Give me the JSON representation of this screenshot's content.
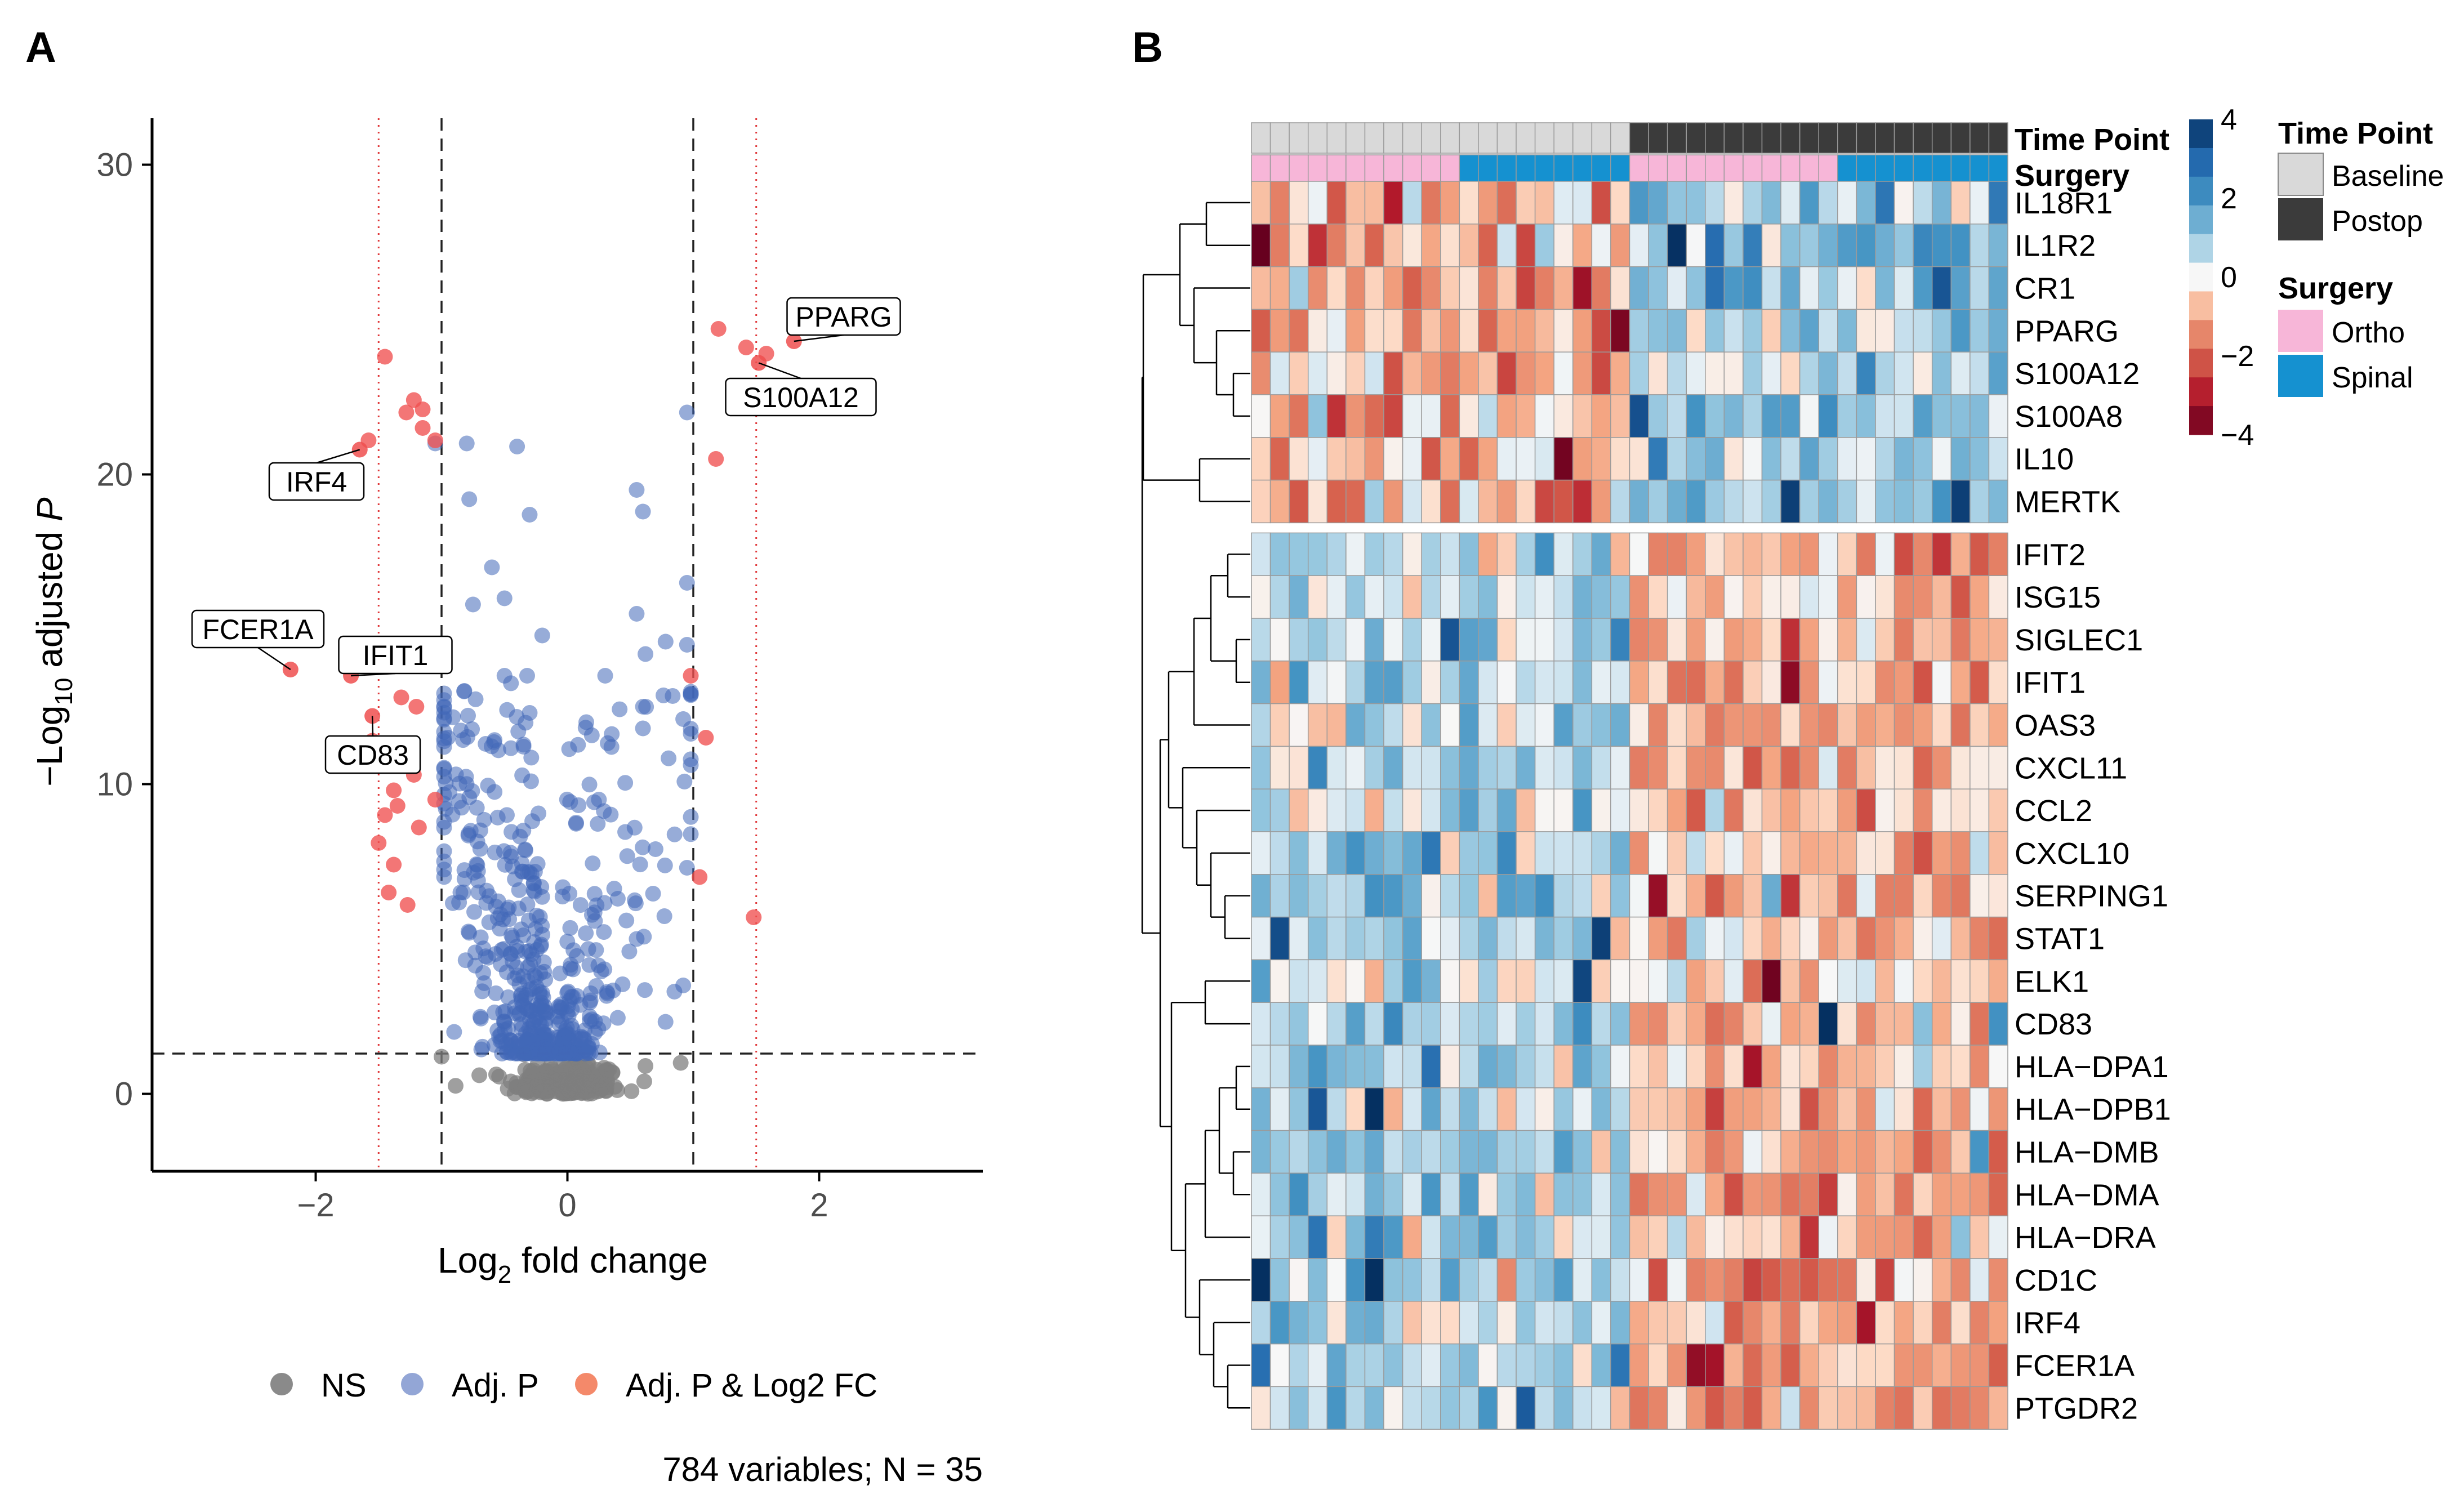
{
  "colors": {
    "ns": "#7f7f7f",
    "adjp": "#4268b8",
    "adjp_fc": "#ef4f4f",
    "legend_ns": "#8a8a8a",
    "legend_adjp": "#93a6d6",
    "legend_adjp_fc": "#f4896a",
    "baseline": "#d9d9d9",
    "postop": "#3b3b3b",
    "ortho": "#f7b6d8",
    "spinal": "#1591d0"
  },
  "panels": {
    "a": "A",
    "b": "B"
  },
  "chart_data": [
    {
      "type": "scatter",
      "subtype": "volcano",
      "xlabel_main": "Log",
      "xlabel_sub": "2",
      "xlabel_rest": " fold change",
      "ylabel_pre": "−Log",
      "ylabel_sub": "10",
      "ylabel_main": " adjusted ",
      "ylabel_italic": "P",
      "xlim": [
        -3.3,
        3.3
      ],
      "ylim": [
        -2.5,
        31.5
      ],
      "xticks": [
        -2,
        0,
        2
      ],
      "xtick_labels": [
        "−2",
        "0",
        "2"
      ],
      "yticks": [
        0,
        10,
        20,
        30
      ],
      "ytick_labels": [
        "0",
        "10",
        "20",
        "30"
      ],
      "fc_cutoffs": [
        -1,
        1
      ],
      "fc_cutoffs_outer": [
        -1.5,
        1.5
      ],
      "p_cutoff": 1.3,
      "legend": [
        {
          "key": "ns",
          "label": "NS"
        },
        {
          "key": "adjp",
          "label": "Adj. P"
        },
        {
          "key": "adjp_fc",
          "label": "Adj. P & Log2 FC"
        }
      ],
      "caption": "784 variables; N = 35",
      "labeled_points": [
        {
          "label": "PPARG",
          "x": 1.8,
          "y": 24.3
        },
        {
          "label": "S100A12",
          "x": 1.52,
          "y": 23.6
        },
        {
          "label": "IRF4",
          "x": -1.65,
          "y": 20.8
        },
        {
          "label": "FCER1A",
          "x": -2.2,
          "y": 13.7
        },
        {
          "label": "IFIT1",
          "x": -1.72,
          "y": 13.5
        },
        {
          "label": "CD83",
          "x": -1.55,
          "y": 12.2
        }
      ],
      "red_points": [
        [
          -1.45,
          23.8
        ],
        [
          -1.15,
          22.1
        ],
        [
          -1.22,
          22.4
        ],
        [
          -1.28,
          22.0
        ],
        [
          -1.15,
          21.5
        ],
        [
          -1.05,
          21.1
        ],
        [
          -1.58,
          21.1
        ],
        [
          -1.32,
          12.8
        ],
        [
          -1.2,
          12.5
        ],
        [
          -1.55,
          11.4
        ],
        [
          -1.22,
          10.3
        ],
        [
          -1.38,
          9.8
        ],
        [
          -1.35,
          9.3
        ],
        [
          -1.18,
          8.6
        ],
        [
          -1.05,
          9.5
        ],
        [
          -1.38,
          7.4
        ],
        [
          -1.42,
          6.5
        ],
        [
          -1.27,
          6.1
        ],
        [
          -1.45,
          9.0
        ],
        [
          -1.5,
          8.1
        ],
        [
          1.2,
          24.7
        ],
        [
          1.58,
          23.9
        ],
        [
          1.42,
          24.1
        ],
        [
          1.18,
          20.5
        ],
        [
          0.98,
          13.5
        ],
        [
          1.1,
          11.5
        ],
        [
          1.48,
          5.7
        ],
        [
          1.05,
          7.0
        ]
      ],
      "grey_points": [
        [
          -0.7,
          0.6
        ],
        [
          -0.45,
          0.4
        ],
        [
          -1.0,
          1.2
        ],
        [
          0.9,
          1.0
        ],
        [
          0.62,
          0.9
        ]
      ],
      "blue_extra": [
        [
          -0.8,
          21.0
        ],
        [
          -1.05,
          21.0
        ],
        [
          -0.4,
          20.9
        ],
        [
          0.95,
          22.0
        ],
        [
          0.55,
          19.5
        ],
        [
          0.6,
          18.8
        ],
        [
          -0.78,
          19.2
        ],
        [
          -0.3,
          18.7
        ],
        [
          -0.6,
          17.0
        ],
        [
          0.95,
          16.5
        ],
        [
          -0.5,
          16.0
        ],
        [
          -0.75,
          15.8
        ],
        [
          0.55,
          15.5
        ],
        [
          -0.2,
          14.8
        ],
        [
          0.78,
          14.6
        ],
        [
          0.62,
          14.2
        ],
        [
          0.95,
          14.5
        ],
        [
          -0.5,
          13.5
        ],
        [
          0.3,
          13.5
        ],
        [
          -0.32,
          13.5
        ],
        [
          -0.3,
          12.3
        ],
        [
          0.15,
          12.0
        ],
        [
          0.6,
          12.5
        ],
        [
          0.92,
          12.1
        ],
        [
          -0.65,
          11.3
        ],
        [
          0.35,
          11.2
        ],
        [
          0.6,
          11.8
        ],
        [
          -0.95,
          11.5
        ],
        [
          0.95,
          7.3
        ],
        [
          0.92,
          3.5
        ],
        [
          0.85,
          3.3
        ],
        [
          -0.9,
          2.0
        ],
        [
          0.55,
          5.0
        ],
        [
          -0.78,
          5.2
        ],
        [
          -0.85,
          6.5
        ],
        [
          0.4,
          6.3
        ],
        [
          0.7,
          7.9
        ],
        [
          -0.35,
          8.5
        ],
        [
          0.25,
          9.5
        ]
      ]
    },
    {
      "type": "heatmap",
      "rows": [
        "IL18R1",
        "IL1R2",
        "CR1",
        "PPARG",
        "S100A12",
        "S100A8",
        "IL10",
        "MERTK",
        "IFIT2",
        "ISG15",
        "SIGLEC1",
        "IFIT1",
        "OAS3",
        "CXCL11",
        "CCL2",
        "CXCL10",
        "SERPING1",
        "STAT1",
        "ELK1",
        "CD83",
        "HLA−DPA1",
        "HLA−DPB1",
        "HLA−DMB",
        "HLA−DMA",
        "HLA−DRA",
        "CD1C",
        "IRF4",
        "FCER1A",
        "PTGDR2"
      ],
      "row_split": 8,
      "n_cols": 40,
      "col_split": 20,
      "annotation_labels": [
        "Time Point",
        "Surgery"
      ],
      "time_point": {
        "baseline_cols": 20,
        "postop_cols": 20
      },
      "surgery": {
        "ortho": [
          [
            0,
            11
          ],
          [
            20,
            31
          ]
        ],
        "spinal": [
          [
            11,
            20
          ],
          [
            31,
            40
          ]
        ]
      },
      "colorbar": {
        "ticks": [
          4,
          2,
          0,
          -2,
          -4
        ],
        "tick_labels": [
          "4",
          "2",
          "0",
          "−2",
          "−4"
        ],
        "range": [
          -4,
          4
        ]
      },
      "legend_time": {
        "title": "Time Point",
        "items": [
          {
            "key": "baseline",
            "label": "Baseline"
          },
          {
            "key": "postop",
            "label": "Postop"
          }
        ]
      },
      "legend_surgery": {
        "title": "Surgery",
        "items": [
          {
            "key": "ortho",
            "label": "Ortho"
          },
          {
            "key": "spinal",
            "label": "Spinal"
          }
        ]
      }
    }
  ]
}
